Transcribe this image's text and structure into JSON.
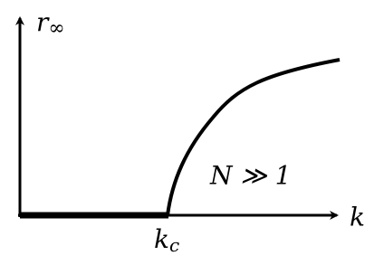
{
  "axes": {
    "y_label": {
      "base": "r",
      "sub": "∞"
    },
    "x_label": "k",
    "threshold_label": {
      "base": "k",
      "sub": "c"
    }
  },
  "annotation": "N ≫ 1"
}
